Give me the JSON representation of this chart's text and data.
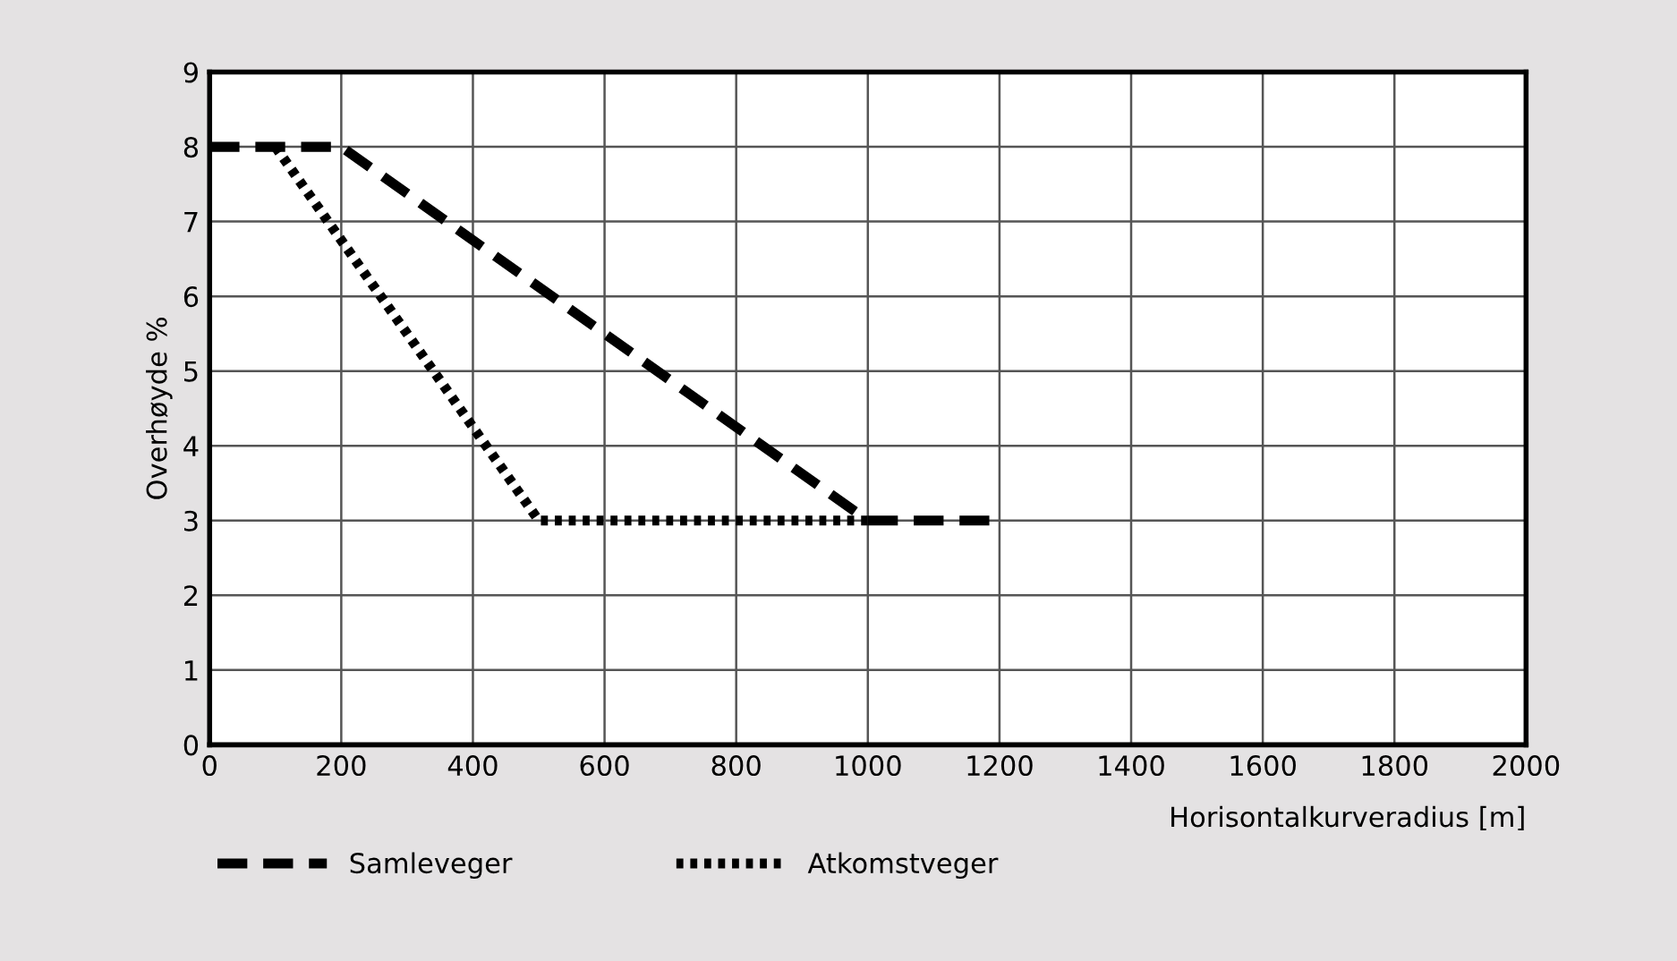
{
  "chart_data": {
    "type": "line",
    "xlabel": "Horisontalkurveradius [m]",
    "ylabel": "Overhøyde %",
    "series": [
      {
        "name": "Samleveger",
        "color": "#000000",
        "line_style": "dashed",
        "x": [
          0,
          200,
          1000,
          1200
        ],
        "values": [
          8,
          8,
          3,
          3
        ]
      },
      {
        "name": "Atkomstveger",
        "color": "#000000",
        "line_style": "dotted",
        "x": [
          100,
          500,
          1000
        ],
        "values": [
          8,
          3,
          3
        ]
      }
    ],
    "xlim": [
      0,
      2000
    ],
    "xticks": [
      0,
      200,
      400,
      600,
      800,
      1000,
      1200,
      1400,
      1600,
      1800,
      2000
    ],
    "ylim": [
      0,
      9
    ],
    "yticks": [
      0,
      1,
      2,
      3,
      4,
      5,
      6,
      7,
      8,
      9
    ],
    "grid": true,
    "legend": "bottom left",
    "marker": "none"
  }
}
